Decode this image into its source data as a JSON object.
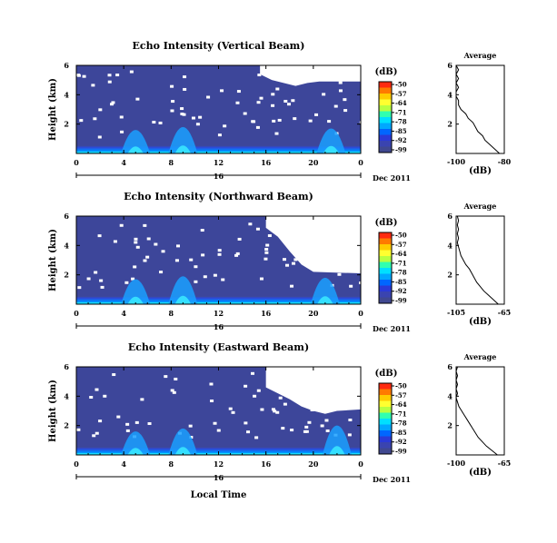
{
  "x_axis_label": "Local Time",
  "colorbar": {
    "unit": "(dB)",
    "ticks": [
      "-50",
      "-57",
      "-64",
      "-71",
      "-78",
      "-85",
      "-92",
      "-99"
    ],
    "colors": [
      "#ff2a10",
      "#ff7a00",
      "#ffcc00",
      "#ffff30",
      "#b8ff40",
      "#30ffb0",
      "#00e0ff",
      "#00a8ff",
      "#0066ff",
      "#2a3ad8",
      "#3a44b0",
      "#404890"
    ]
  },
  "chart_data": [
    {
      "type": "heatmap",
      "title": "Echo Intensity (Vertical Beam)",
      "ylabel": "Height (km)",
      "x_ticks": [
        "0",
        "4",
        "8",
        "12",
        "16",
        "20",
        "0"
      ],
      "y_ticks": [
        "6",
        "4",
        "2"
      ],
      "xlim": [
        0,
        24
      ],
      "ylim": [
        0,
        6
      ],
      "day_label": "16",
      "month_label": "Dec 2011",
      "data_gap_boundary": [
        [
          0,
          6
        ],
        [
          12,
          6
        ],
        [
          15.5,
          6
        ],
        [
          15.5,
          5.4
        ],
        [
          16.5,
          5.0
        ],
        [
          18.5,
          4.6
        ],
        [
          19.5,
          4.8
        ],
        [
          20.5,
          4.9
        ],
        [
          24,
          4.9
        ]
      ],
      "enhanced_echo_bands": [
        {
          "center": 5,
          "top_km": 1.6
        },
        {
          "center": 9,
          "top_km": 1.8
        },
        {
          "center": 21.5,
          "top_km": 1.7
        }
      ],
      "average_profile": {
        "title": "Average",
        "xlabel": "(dB)",
        "x_ticks": [
          "-100",
          "-80"
        ],
        "xlim": [
          -100,
          -80
        ],
        "y_ticks": [
          "6",
          "4",
          "2"
        ],
        "ylim": [
          0,
          6
        ],
        "heights_km": [
          0,
          0.3,
          0.6,
          0.9,
          1.2,
          1.5,
          1.8,
          2.1,
          2.4,
          2.7,
          3.0,
          3.3,
          3.6,
          3.9,
          4.2,
          4.5,
          4.8,
          5.1,
          5.4,
          5.7,
          6.0
        ],
        "values_db": [
          -82,
          -84,
          -86,
          -88,
          -89,
          -91,
          -92,
          -93,
          -95,
          -96,
          -98,
          -99,
          -99,
          -100,
          -100,
          -99,
          -100,
          -99,
          -100,
          -99,
          -100
        ]
      }
    },
    {
      "type": "heatmap",
      "title": "Echo Intensity (Northward Beam)",
      "ylabel": "Height (km)",
      "x_ticks": [
        "0",
        "4",
        "8",
        "12",
        "16",
        "20",
        "0"
      ],
      "y_ticks": [
        "6",
        "4",
        "2"
      ],
      "xlim": [
        0,
        24
      ],
      "ylim": [
        0,
        6
      ],
      "day_label": "16",
      "month_label": "Dec 2011",
      "data_gap_boundary": [
        [
          0,
          6
        ],
        [
          16,
          6
        ],
        [
          16,
          5.2
        ],
        [
          17,
          4.6
        ],
        [
          18,
          3.6
        ],
        [
          19,
          2.7
        ],
        [
          20,
          2.2
        ],
        [
          24,
          2.1
        ]
      ],
      "enhanced_echo_bands": [
        {
          "center": 5,
          "top_km": 1.7
        },
        {
          "center": 9,
          "top_km": 1.9
        },
        {
          "center": 21,
          "top_km": 1.8
        }
      ],
      "average_profile": {
        "title": "Average",
        "xlabel": "(dB)",
        "x_ticks": [
          "-105",
          "-65"
        ],
        "xlim": [
          -105,
          -65
        ],
        "y_ticks": [
          "6",
          "4",
          "2"
        ],
        "ylim": [
          0,
          6
        ],
        "heights_km": [
          0,
          0.3,
          0.6,
          0.9,
          1.2,
          1.5,
          1.8,
          2.1,
          2.4,
          2.7,
          3.0,
          3.3,
          3.6,
          3.9,
          4.2,
          4.5,
          4.8,
          5.1,
          5.4,
          5.7,
          6.0
        ],
        "values_db": [
          -70,
          -74,
          -78,
          -82,
          -85,
          -88,
          -90,
          -92,
          -94,
          -97,
          -99,
          -101,
          -102,
          -103,
          -104,
          -103,
          -104,
          -103,
          -104,
          -103,
          -104
        ]
      }
    },
    {
      "type": "heatmap",
      "title": "Echo Intensity (Eastward Beam)",
      "ylabel": "Height (km)",
      "x_ticks": [
        "0",
        "4",
        "8",
        "12",
        "16",
        "20",
        "0"
      ],
      "y_ticks": [
        "6",
        "4",
        "2"
      ],
      "xlim": [
        0,
        24
      ],
      "ylim": [
        0,
        6
      ],
      "day_label": "16",
      "month_label": "Dec 2011",
      "data_gap_boundary": [
        [
          0,
          6
        ],
        [
          16,
          6
        ],
        [
          16,
          4.6
        ],
        [
          17,
          4.2
        ],
        [
          18,
          3.8
        ],
        [
          19,
          3.3
        ],
        [
          20,
          3.0
        ],
        [
          21,
          2.8
        ],
        [
          22,
          3.0
        ],
        [
          24,
          3.1
        ]
      ],
      "enhanced_echo_bands": [
        {
          "center": 5,
          "top_km": 1.6
        },
        {
          "center": 9,
          "top_km": 1.8
        },
        {
          "center": 22,
          "top_km": 2.0
        }
      ],
      "average_profile": {
        "title": "Average",
        "xlabel": "(dB)",
        "x_ticks": [
          "-100",
          "-65"
        ],
        "xlim": [
          -100,
          -65
        ],
        "y_ticks": [
          "6",
          "4",
          "2"
        ],
        "ylim": [
          0,
          6
        ],
        "heights_km": [
          0,
          0.3,
          0.6,
          0.9,
          1.2,
          1.5,
          1.8,
          2.1,
          2.4,
          2.7,
          3.0,
          3.3,
          3.6,
          3.9,
          4.2,
          4.5,
          4.8,
          5.1,
          5.4,
          5.7,
          6.0
        ],
        "values_db": [
          -70,
          -74,
          -78,
          -81,
          -84,
          -86,
          -88,
          -90,
          -92,
          -94,
          -96,
          -98,
          -99,
          -100,
          -99,
          -100,
          -99,
          -100,
          -99,
          -100,
          -99
        ]
      }
    }
  ]
}
